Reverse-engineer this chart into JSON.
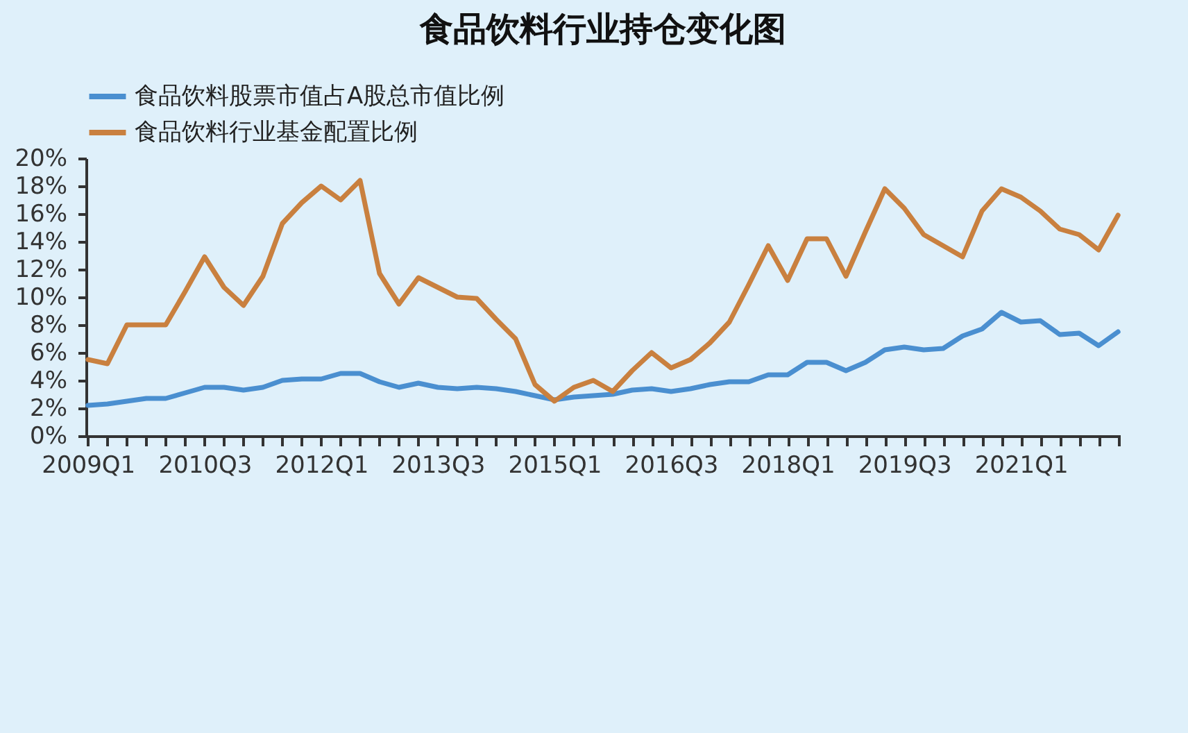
{
  "chart_data": {
    "type": "line",
    "title": "食品饮料行业持仓变化图",
    "categories": [
      "2009Q1",
      null,
      null,
      null,
      null,
      null,
      "2010Q3",
      null,
      null,
      null,
      null,
      null,
      "2012Q1",
      null,
      null,
      null,
      null,
      null,
      "2013Q3",
      null,
      null,
      null,
      null,
      null,
      "2015Q1",
      null,
      null,
      null,
      null,
      null,
      "2016Q3",
      null,
      null,
      null,
      null,
      null,
      "2018Q1",
      null,
      null,
      null,
      null,
      null,
      "2019Q3",
      null,
      null,
      null,
      null,
      null,
      "2021Q1",
      null,
      null,
      null,
      null,
      null
    ],
    "series": [
      {
        "name": "食品饮料股票市值占A股总市值比例",
        "color": "#4a8fd0",
        "values": [
          2.2,
          2.3,
          2.5,
          2.7,
          2.7,
          3.1,
          3.5,
          3.5,
          3.3,
          3.5,
          4.0,
          4.1,
          4.1,
          4.5,
          4.5,
          3.9,
          3.5,
          3.8,
          3.5,
          3.4,
          3.5,
          3.4,
          3.2,
          2.9,
          2.6,
          2.8,
          2.9,
          3.0,
          3.3,
          3.4,
          3.2,
          3.4,
          3.7,
          3.9,
          3.9,
          4.4,
          4.4,
          5.3,
          5.3,
          4.7,
          5.3,
          6.2,
          6.4,
          6.2,
          6.3,
          7.2,
          7.7,
          8.9,
          8.2,
          8.3,
          7.3,
          7.4,
          6.5,
          7.5
        ]
      },
      {
        "name": "食品饮料行业基金配置比例",
        "color": "#c9803f",
        "values": [
          5.5,
          5.2,
          8.0,
          8.0,
          8.0,
          10.4,
          12.9,
          10.7,
          9.4,
          11.5,
          15.3,
          16.8,
          18.0,
          17.0,
          18.4,
          11.7,
          9.5,
          11.4,
          10.7,
          10.0,
          9.9,
          8.4,
          7.0,
          3.7,
          2.5,
          3.5,
          4.0,
          3.2,
          4.7,
          6.0,
          4.9,
          5.5,
          6.7,
          8.2,
          10.9,
          13.7,
          11.2,
          14.2,
          14.2,
          11.5,
          14.7,
          17.8,
          16.4,
          14.5,
          13.7,
          12.9,
          16.2,
          17.8,
          17.2,
          16.2,
          14.9,
          14.5,
          13.4,
          15.9
        ]
      }
    ],
    "ylim": [
      0,
      20
    ],
    "yticks": [
      {
        "value": 0,
        "label": "0%"
      },
      {
        "value": 2,
        "label": "2%"
      },
      {
        "value": 4,
        "label": "4%"
      },
      {
        "value": 6,
        "label": "6%"
      },
      {
        "value": 8,
        "label": "8%"
      },
      {
        "value": 10,
        "label": "10%"
      },
      {
        "value": 12,
        "label": "12%"
      },
      {
        "value": 14,
        "label": "14%"
      },
      {
        "value": 16,
        "label": "16%"
      },
      {
        "value": 18,
        "label": "18%"
      },
      {
        "value": 20,
        "label": "20%"
      }
    ],
    "grid": false,
    "legend": "top"
  }
}
